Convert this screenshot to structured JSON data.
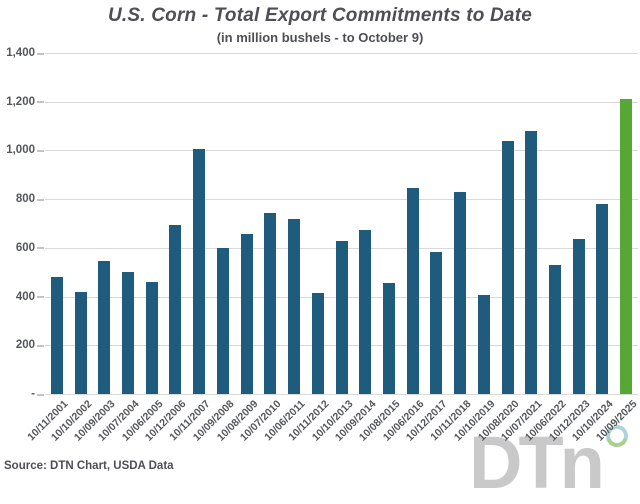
{
  "title": "U.S. Corn - Total Export Commitments to Date",
  "subtitle": "(in million bushels - to October 9)",
  "source": "Source: DTN Chart, USDA Data",
  "watermark": {
    "text": "DTn"
  },
  "colors": {
    "bar": "#1e5b7c",
    "highlight_bar": "#56a733",
    "grid": "#d9d9d9",
    "tick": "#c4c4c4",
    "text": "#54565b",
    "title_text": "#4d4f54",
    "watermark_gray": "#c9c9c9",
    "ring_blue": "#aed3dd",
    "ring_green": "#a8d18f"
  },
  "chart_data": {
    "type": "bar",
    "title": "U.S. Corn - Total Export Commitments to Date",
    "subtitle": "(in million bushels - to October 9)",
    "xlabel": "",
    "ylabel": "million bushels",
    "ylim": [
      0,
      1400
    ],
    "grid": "horizontal",
    "legend": "none",
    "yticks": [
      0,
      200,
      400,
      600,
      800,
      1000,
      1200,
      1400
    ],
    "ytick_labels": [
      "-",
      "200",
      "400",
      "600",
      "800",
      "1,000",
      "1,200",
      "1,400"
    ],
    "categories": [
      "10/11/2001",
      "10/10/2002",
      "10/09/2003",
      "10/07/2004",
      "10/06/2005",
      "10/12/2006",
      "10/11/2007",
      "10/09/2008",
      "10/08/2009",
      "10/07/2010",
      "10/06/2011",
      "10/11/2012",
      "10/10/2013",
      "10/09/2014",
      "10/08/2015",
      "10/06/2016",
      "10/12/2017",
      "10/11/2018",
      "10/10/2019",
      "10/08/2020",
      "10/07/2021",
      "10/06/2022",
      "10/12/2023",
      "10/10/2024",
      "10/09/2025"
    ],
    "values": [
      480,
      420,
      545,
      500,
      460,
      695,
      1005,
      600,
      655,
      745,
      720,
      415,
      630,
      675,
      455,
      845,
      585,
      830,
      405,
      1040,
      1080,
      530,
      635,
      780,
      1210
    ],
    "highlight_index": 24
  }
}
